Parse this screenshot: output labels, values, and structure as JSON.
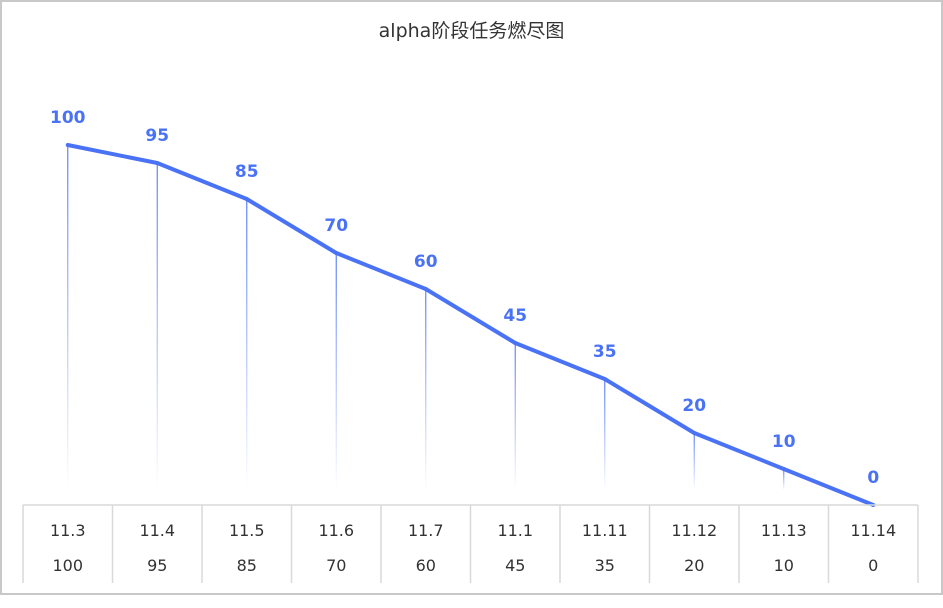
{
  "chart_data": {
    "type": "line",
    "title": "alpha阶段任务燃尽图",
    "categories": [
      "11.3",
      "11.4",
      "11.5",
      "11.6",
      "11.7",
      "11.1",
      "11.11",
      "11.12",
      "11.13",
      "11.14"
    ],
    "values": [
      100,
      95,
      85,
      70,
      60,
      45,
      35,
      20,
      10,
      0
    ],
    "ylim": [
      0,
      100
    ],
    "grid": false,
    "data_table": true,
    "colors": {
      "line": "#4a72f5",
      "label": "#4a72f5",
      "table_text": "#333333",
      "table_border": "#d9d9d9"
    }
  }
}
